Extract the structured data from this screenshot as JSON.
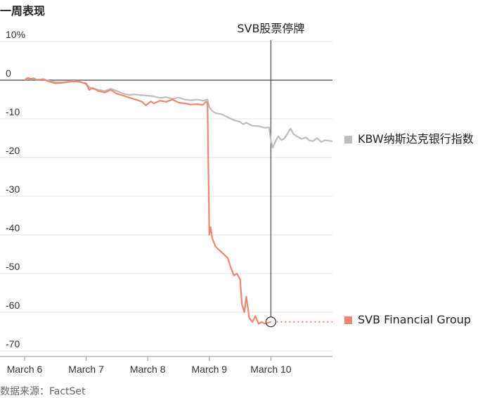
{
  "chart_data": {
    "type": "line",
    "title": "一周表现",
    "ylabel": "",
    "xlabel": "",
    "ylim": [
      -70,
      10
    ],
    "yticks": [
      {
        "value": 10,
        "label": "10%"
      },
      {
        "value": 0,
        "label": "0"
      },
      {
        "value": -10,
        "label": "-10"
      },
      {
        "value": -20,
        "label": "-20"
      },
      {
        "value": -30,
        "label": "-30"
      },
      {
        "value": -40,
        "label": "-40"
      },
      {
        "value": -50,
        "label": "-50"
      },
      {
        "value": -60,
        "label": "-60"
      },
      {
        "value": -70,
        "label": "-70"
      }
    ],
    "xlim": [
      0,
      5
    ],
    "xticks": [
      {
        "value": 0,
        "label": "March 6"
      },
      {
        "value": 1,
        "label": "March 7"
      },
      {
        "value": 2,
        "label": "March 8"
      },
      {
        "value": 3,
        "label": "March 9"
      },
      {
        "value": 4,
        "label": "March 10"
      }
    ],
    "grid": true,
    "legend_position": "right",
    "series": [
      {
        "name": "KBW纳斯达克银行指数",
        "color": "#bdbdbd",
        "points": [
          [
            0.0,
            0.0
          ],
          [
            0.05,
            0.5
          ],
          [
            0.1,
            0.2
          ],
          [
            0.15,
            0.4
          ],
          [
            0.2,
            0.0
          ],
          [
            0.3,
            0.3
          ],
          [
            0.4,
            -0.2
          ],
          [
            0.5,
            -0.5
          ],
          [
            0.6,
            -0.6
          ],
          [
            0.7,
            -0.4
          ],
          [
            0.8,
            -0.2
          ],
          [
            0.9,
            -0.5
          ],
          [
            1.0,
            -0.8
          ],
          [
            1.05,
            -1.8
          ],
          [
            1.1,
            -2.2
          ],
          [
            1.2,
            -2.5
          ],
          [
            1.3,
            -2.8
          ],
          [
            1.4,
            -2.2
          ],
          [
            1.5,
            -2.8
          ],
          [
            1.6,
            -3.5
          ],
          [
            1.7,
            -3.8
          ],
          [
            1.8,
            -3.7
          ],
          [
            1.9,
            -3.9
          ],
          [
            2.0,
            -4.0
          ],
          [
            2.1,
            -4.2
          ],
          [
            2.2,
            -4.6
          ],
          [
            2.3,
            -4.4
          ],
          [
            2.4,
            -4.8
          ],
          [
            2.5,
            -4.5
          ],
          [
            2.6,
            -5.0
          ],
          [
            2.7,
            -5.2
          ],
          [
            2.8,
            -5.0
          ],
          [
            2.9,
            -5.3
          ],
          [
            2.97,
            -5.0
          ],
          [
            3.0,
            -7.0
          ],
          [
            3.05,
            -8.0
          ],
          [
            3.1,
            -8.5
          ],
          [
            3.2,
            -8.8
          ],
          [
            3.3,
            -9.6
          ],
          [
            3.4,
            -10.3
          ],
          [
            3.5,
            -10.8
          ],
          [
            3.55,
            -11.4
          ],
          [
            3.6,
            -11.0
          ],
          [
            3.7,
            -11.8
          ],
          [
            3.8,
            -11.9
          ],
          [
            3.9,
            -12.3
          ],
          [
            3.97,
            -12.2
          ],
          [
            4.0,
            -15.5
          ],
          [
            4.03,
            -17.5
          ],
          [
            4.07,
            -16.0
          ],
          [
            4.12,
            -14.5
          ],
          [
            4.17,
            -15.5
          ],
          [
            4.22,
            -15.0
          ],
          [
            4.27,
            -13.8
          ],
          [
            4.32,
            -12.5
          ],
          [
            4.37,
            -14.0
          ],
          [
            4.42,
            -14.5
          ],
          [
            4.5,
            -15.2
          ],
          [
            4.57,
            -14.8
          ],
          [
            4.62,
            -15.5
          ],
          [
            4.68,
            -15.8
          ],
          [
            4.75,
            -15.0
          ],
          [
            4.82,
            -16.0
          ],
          [
            4.88,
            -15.5
          ],
          [
            5.0,
            -15.8
          ]
        ]
      },
      {
        "name": "SVB Financial Group",
        "color": "#f08570",
        "points": [
          [
            0.0,
            0.0
          ],
          [
            0.05,
            0.6
          ],
          [
            0.1,
            0.3
          ],
          [
            0.15,
            0.5
          ],
          [
            0.2,
            0.1
          ],
          [
            0.3,
            0.2
          ],
          [
            0.4,
            -0.4
          ],
          [
            0.5,
            -0.8
          ],
          [
            0.6,
            -0.7
          ],
          [
            0.7,
            -0.5
          ],
          [
            0.8,
            -0.3
          ],
          [
            0.9,
            -0.4
          ],
          [
            0.97,
            -0.8
          ],
          [
            1.0,
            -1.0
          ],
          [
            1.05,
            -2.5
          ],
          [
            1.1,
            -2.0
          ],
          [
            1.2,
            -2.8
          ],
          [
            1.3,
            -3.2
          ],
          [
            1.4,
            -2.5
          ],
          [
            1.5,
            -3.5
          ],
          [
            1.6,
            -4.0
          ],
          [
            1.7,
            -4.5
          ],
          [
            1.8,
            -5.0
          ],
          [
            1.9,
            -5.5
          ],
          [
            1.97,
            -6.5
          ],
          [
            2.05,
            -5.5
          ],
          [
            2.1,
            -6.0
          ],
          [
            2.2,
            -5.3
          ],
          [
            2.3,
            -5.6
          ],
          [
            2.4,
            -5.0
          ],
          [
            2.5,
            -5.8
          ],
          [
            2.6,
            -6.0
          ],
          [
            2.7,
            -6.3
          ],
          [
            2.8,
            -6.2
          ],
          [
            2.9,
            -6.4
          ],
          [
            2.95,
            -5.5
          ],
          [
            2.97,
            -6.0
          ],
          [
            3.0,
            -40.0
          ],
          [
            3.02,
            -38.0
          ],
          [
            3.05,
            -41.0
          ],
          [
            3.1,
            -43.0
          ],
          [
            3.2,
            -44.5
          ],
          [
            3.3,
            -46.0
          ],
          [
            3.35,
            -48.5
          ],
          [
            3.4,
            -50.5
          ],
          [
            3.45,
            -50.0
          ],
          [
            3.5,
            -51.5
          ],
          [
            3.53,
            -58.0
          ],
          [
            3.57,
            -60.0
          ],
          [
            3.6,
            -56.0
          ],
          [
            3.65,
            -61.5
          ],
          [
            3.7,
            -62.5
          ],
          [
            3.75,
            -61.0
          ],
          [
            3.8,
            -63.0
          ],
          [
            3.85,
            -62.5
          ],
          [
            3.9,
            -63.0
          ],
          [
            4.0,
            -62.5
          ]
        ]
      }
    ],
    "projection": {
      "series": "SVB Financial Group",
      "from": [
        4.0,
        -62.5
      ],
      "to": [
        5.0,
        -62.5
      ],
      "style": "dotted"
    },
    "annotations": [
      {
        "x": 4.0,
        "text": "SVB股票停牌"
      }
    ],
    "source": "数据来源：FactSet"
  }
}
